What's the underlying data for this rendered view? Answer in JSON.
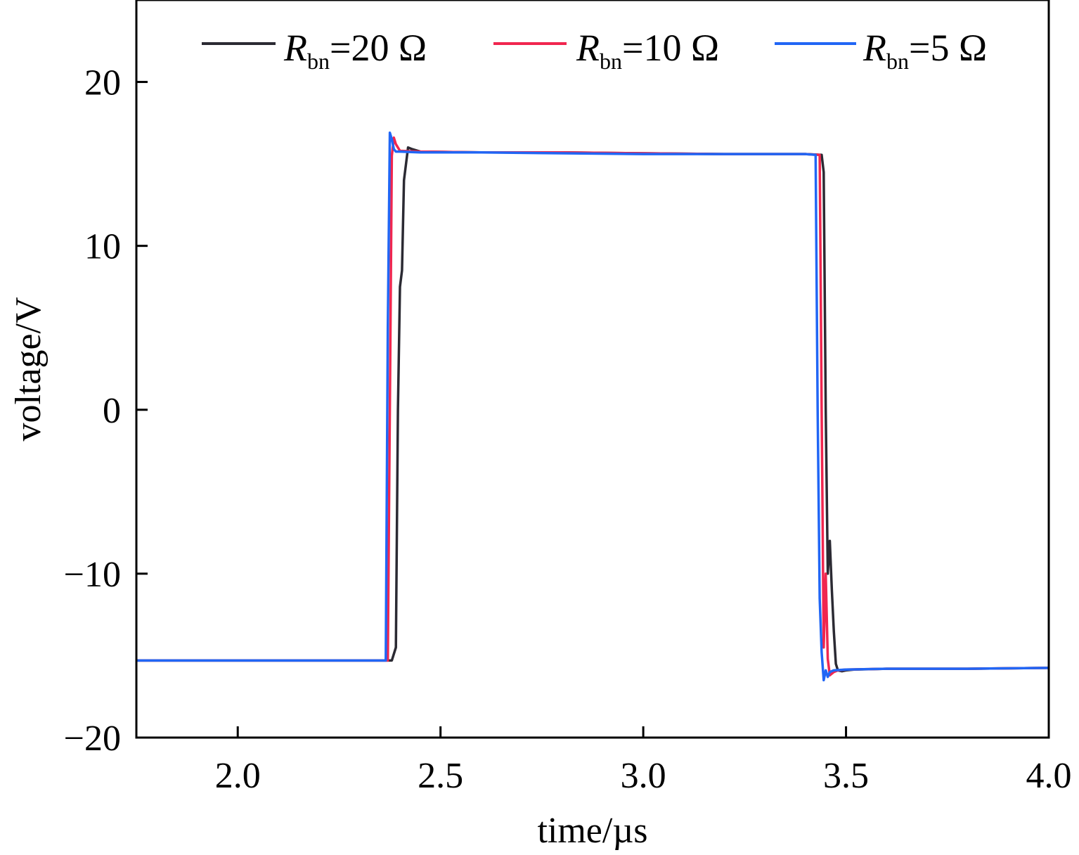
{
  "chart_data": {
    "type": "line",
    "xlabel": "time/µs",
    "ylabel": "voltage/V",
    "xlim": [
      1.75,
      4.0
    ],
    "ylim": [
      -20,
      25
    ],
    "xticks": [
      2.0,
      2.5,
      3.0,
      3.5,
      4.0
    ],
    "xtick_labels": [
      "2.0",
      "2.5",
      "3.0",
      "3.5",
      "4.0"
    ],
    "yticks": [
      -20,
      -10,
      0,
      10,
      20
    ],
    "ytick_labels": [
      "−20",
      "−10",
      "0",
      "10",
      "20"
    ],
    "grid": false,
    "legend_position": "top",
    "series": [
      {
        "name": "R_bn=20 Ω",
        "legend": {
          "r": "R",
          "sub": "bn",
          "value": "=20 Ω"
        },
        "color": "#2b2a33",
        "x": [
          1.75,
          2.35,
          2.38,
          2.39,
          2.395,
          2.4,
          2.405,
          2.41,
          2.42,
          2.43,
          2.45,
          2.6,
          2.8,
          3.0,
          3.2,
          3.4,
          3.44,
          3.445,
          3.45,
          3.455,
          3.46,
          3.465,
          3.47,
          3.475,
          3.48,
          3.49,
          3.5,
          3.52,
          3.6,
          3.8,
          4.0
        ],
        "y": [
          -15.3,
          -15.3,
          -15.3,
          -14.5,
          0,
          7.5,
          8.5,
          14.0,
          16.0,
          15.9,
          15.75,
          15.7,
          15.7,
          15.65,
          15.6,
          15.6,
          15.55,
          14.5,
          0,
          -10.0,
          -8.0,
          -11.0,
          -13.5,
          -15.5,
          -15.9,
          -15.95,
          -15.9,
          -15.85,
          -15.8,
          -15.8,
          -15.75
        ]
      },
      {
        "name": "R_bn=10 Ω",
        "legend": {
          "r": "R",
          "sub": "bn",
          "value": "=10 Ω"
        },
        "color": "#f0264f",
        "x": [
          1.75,
          2.36,
          2.37,
          2.375,
          2.38,
          2.385,
          2.39,
          2.4,
          2.45,
          2.6,
          2.8,
          3.0,
          3.2,
          3.4,
          3.435,
          3.44,
          3.445,
          3.45,
          3.455,
          3.46,
          3.47,
          3.48,
          3.5,
          3.6,
          3.8,
          4.0
        ],
        "y": [
          -15.3,
          -15.3,
          -15.3,
          0,
          15.5,
          16.6,
          16.2,
          15.8,
          15.75,
          15.7,
          15.7,
          15.65,
          15.6,
          15.6,
          15.55,
          0,
          -14.5,
          -10.0,
          -15.2,
          -16.2,
          -16.0,
          -15.9,
          -15.85,
          -15.8,
          -15.8,
          -15.75
        ]
      },
      {
        "name": "R_bn=5 Ω",
        "legend": {
          "r": "R",
          "sub": "bn",
          "value": "=5 Ω"
        },
        "color": "#2166f5",
        "x": [
          1.75,
          2.35,
          2.365,
          2.37,
          2.375,
          2.38,
          2.385,
          2.39,
          2.4,
          2.45,
          2.6,
          2.8,
          3.0,
          3.2,
          3.4,
          3.425,
          3.43,
          3.435,
          3.44,
          3.445,
          3.45,
          3.455,
          3.46,
          3.47,
          3.5,
          3.6,
          3.8,
          4.0
        ],
        "y": [
          -15.3,
          -15.3,
          -15.3,
          5,
          16.9,
          16.5,
          15.9,
          15.75,
          15.75,
          15.7,
          15.7,
          15.65,
          15.6,
          15.6,
          15.6,
          15.55,
          0,
          -11.5,
          -14.8,
          -16.5,
          -15.9,
          -16.3,
          -16.0,
          -15.9,
          -15.85,
          -15.8,
          -15.8,
          -15.75
        ]
      }
    ]
  }
}
